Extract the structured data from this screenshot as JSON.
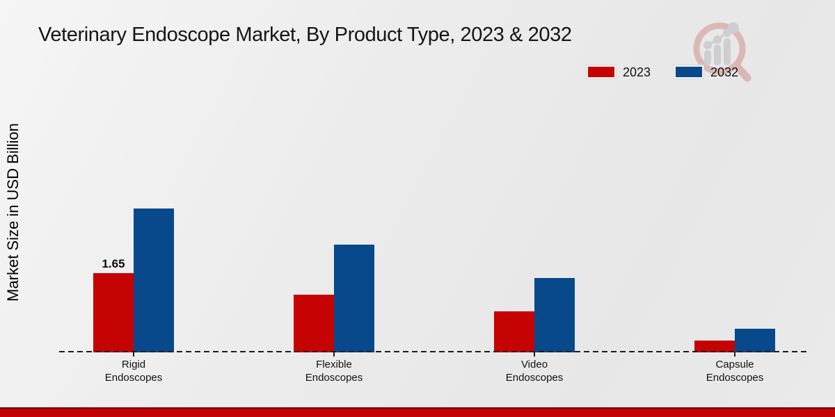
{
  "chart_data": {
    "type": "bar",
    "title": "Veterinary Endoscope Market, By Product Type, 2023 & 2032",
    "ylabel": "Market Size in USD Billion",
    "xlabel": "",
    "categories": [
      "Rigid Endoscopes",
      "Flexible Endoscopes",
      "Video Endoscopes",
      "Capsule Endoscopes"
    ],
    "series": [
      {
        "name": "2023",
        "color": "#c60303",
        "values": [
          1.65,
          1.2,
          0.85,
          0.25
        ],
        "point_labels": [
          "1.65",
          "",
          "",
          ""
        ]
      },
      {
        "name": "2032",
        "color": "#07498b",
        "values": [
          3.0,
          2.25,
          1.55,
          0.5
        ],
        "point_labels": [
          "",
          "",
          "",
          ""
        ]
      }
    ],
    "legend_position": "top-right",
    "legend_labels": [
      "2023",
      "2032"
    ],
    "grid": false,
    "baseline_style": "dashed",
    "ylim": [
      0,
      3.5
    ],
    "unit": "USD Billion"
  },
  "branding": {
    "watermark_icon": "bar-chart-magnifier-logo",
    "bottom_bar_color": "#c20303"
  },
  "colors": {
    "series_2023": "#c60303",
    "series_2032": "#07498b",
    "background": "#ececec",
    "axis": "#1c1c1c"
  }
}
